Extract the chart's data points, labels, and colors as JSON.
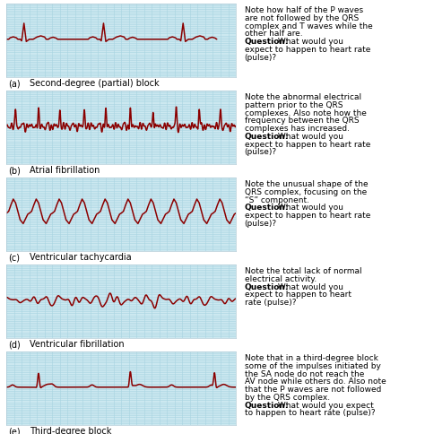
{
  "background_color": "#ffffff",
  "ekg_bg_color": "#cce8f0",
  "grid_color": "#a8d4e0",
  "ekg_line_color": "#8b0000",
  "label_color": "#000000",
  "panels": [
    {
      "label": "(a)",
      "title": "Second-degree (partial) block",
      "note_before": "Note how half of the P waves\nare not followed by the QRS\ncomplex and T waves while the\nother half are.",
      "note_question": "Question:",
      "note_after": " What would you\nexpect to happen to heart rate\n(pulse)?"
    },
    {
      "label": "(b)",
      "title": "Atrial fibrillation",
      "note_before": "Note the abnormal electrical\npattern prior to the QRS\ncomplexes. Also note how the\nfrequency between the QRS\ncomplexes has increased.",
      "note_question": "Question:",
      "note_after": " What would you\nexpect to happen to heart rate\n(pulse)?"
    },
    {
      "label": "(c)",
      "title": "Ventricular tachycardia",
      "note_before": "Note the unusual shape of the\nQRS complex, focusing on the\n“S” component.",
      "note_question": "Question:",
      "note_after": " What would you\nexpect to happen to heart rate\n(pulse)?"
    },
    {
      "label": "(d)",
      "title": "Ventricular fibrillation",
      "note_before": "Note the total lack of normal\nelectrical activity.",
      "note_question": "Question:",
      "note_after": " What would you\nexpect to happen to heart\nrate (pulse)?"
    },
    {
      "label": "(e)",
      "title": "Third-degree block",
      "note_before": "Note that in a third-degree block\nsome of the impulses initiated by\nthe SA node do not reach the\nAV node while others do. Also note\nthat the P waves are not followed\nby the QRS complex.",
      "note_question": "Question:",
      "note_after": " What would you expect\nto happen to heart rate (pulse)?"
    }
  ],
  "ekg_linewidth": 1.1,
  "fig_width": 4.74,
  "fig_height": 4.85,
  "dpi": 100
}
